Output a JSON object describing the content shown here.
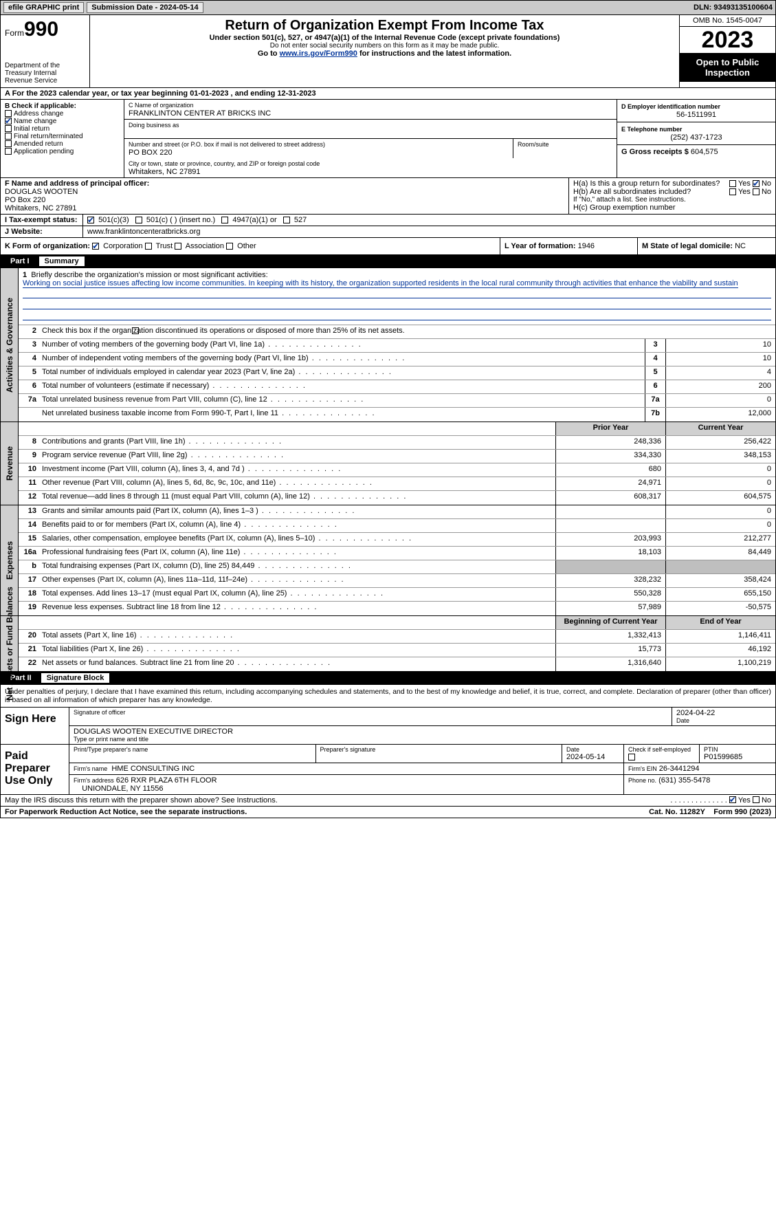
{
  "topbar": {
    "efile_label": "efile GRAPHIC print",
    "submission_label": "Submission Date - 2024-05-14",
    "dln_label": "DLN: 93493135100604"
  },
  "header": {
    "form_word": "Form",
    "form_num": "990",
    "dept": "Department of the Treasury Internal Revenue Service",
    "title": "Return of Organization Exempt From Income Tax",
    "sub1": "Under section 501(c), 527, or 4947(a)(1) of the Internal Revenue Code (except private foundations)",
    "sub2": "Do not enter social security numbers on this form as it may be made public.",
    "sub3_pre": "Go to ",
    "sub3_link": "www.irs.gov/Form990",
    "sub3_post": " for instructions and the latest information.",
    "omb": "OMB No. 1545-0047",
    "year": "2023",
    "open_pub": "Open to Public Inspection"
  },
  "line_a": "A For the 2023 calendar year, or tax year beginning 01-01-2023   , and ending 12-31-2023",
  "box_b": {
    "header": "B Check if applicable:",
    "opts": [
      "Address change",
      "Name change",
      "Initial return",
      "Final return/terminated",
      "Amended return",
      "Application pending"
    ],
    "checked_idx": 1
  },
  "box_c": {
    "name_lbl": "C Name of organization",
    "name_val": "FRANKLINTON CENTER AT BRICKS INC",
    "dba_lbl": "Doing business as",
    "street_lbl": "Number and street (or P.O. box if mail is not delivered to street address)",
    "street_val": "PO BOX 220",
    "room_lbl": "Room/suite",
    "city_lbl": "City or town, state or province, country, and ZIP or foreign postal code",
    "city_val": "Whitakers, NC  27891"
  },
  "box_d": {
    "lbl": "D Employer identification number",
    "val": "56-1511991"
  },
  "box_e": {
    "lbl": "E Telephone number",
    "val": "(252) 437-1723"
  },
  "box_g": {
    "lbl": "G Gross receipts $",
    "val": "604,575"
  },
  "box_f": {
    "lbl": "F Name and address of principal officer:",
    "name": "DOUGLAS WOOTEN",
    "street": "PO Box 220",
    "city": "Whitakers, NC  27891"
  },
  "box_h": {
    "a_lbl": "H(a)  Is this a group return for subordinates?",
    "a_yes": "Yes",
    "a_no": "No",
    "b_lbl": "H(b)  Are all subordinates included?",
    "b_yes": "Yes",
    "b_no": "No",
    "b_note": "If \"No,\" attach a list. See instructions.",
    "c_lbl": "H(c)  Group exemption number"
  },
  "box_i": {
    "lbl": "Tax-exempt status:",
    "opts": [
      "501(c)(3)",
      "501(c) (  ) (insert no.)",
      "4947(a)(1) or",
      "527"
    ]
  },
  "box_j": {
    "lbl": "Website:",
    "val": "www.franklintoncenteratbricks.org"
  },
  "box_k": {
    "lbl": "K Form of organization:",
    "opts": [
      "Corporation",
      "Trust",
      "Association",
      "Other"
    ]
  },
  "box_l": {
    "lbl": "L Year of formation:",
    "val": "1946"
  },
  "box_m": {
    "lbl": "M State of legal domicile:",
    "val": "NC"
  },
  "part1": {
    "num": "Part I",
    "title": "Summary"
  },
  "summary": {
    "line1_lbl": "Briefly describe the organization's mission or most significant activities:",
    "line1_txt": "Working on social justice issues affecting low income communities. In keeping with its history, the organization supported residents in the local rural community through activities that enhance the viability and sustain",
    "line2_lbl": "Check this box         if the organization discontinued its operations or disposed of more than 25% of its net assets.",
    "rows_ag": [
      {
        "n": "3",
        "d": "Number of voting members of the governing body (Part VI, line 1a)",
        "box": "3",
        "v": "10"
      },
      {
        "n": "4",
        "d": "Number of independent voting members of the governing body (Part VI, line 1b)",
        "box": "4",
        "v": "10"
      },
      {
        "n": "5",
        "d": "Total number of individuals employed in calendar year 2023 (Part V, line 2a)",
        "box": "5",
        "v": "4"
      },
      {
        "n": "6",
        "d": "Total number of volunteers (estimate if necessary)",
        "box": "6",
        "v": "200"
      },
      {
        "n": "7a",
        "d": "Total unrelated business revenue from Part VIII, column (C), line 12",
        "box": "7a",
        "v": "0"
      },
      {
        "n": "",
        "d": "Net unrelated business taxable income from Form 990-T, Part I, line 11",
        "box": "7b",
        "v": "12,000"
      }
    ],
    "prior_hdr": "Prior Year",
    "curr_hdr": "Current Year",
    "rows_rev": [
      {
        "n": "8",
        "d": "Contributions and grants (Part VIII, line 1h)",
        "p": "248,336",
        "c": "256,422"
      },
      {
        "n": "9",
        "d": "Program service revenue (Part VIII, line 2g)",
        "p": "334,330",
        "c": "348,153"
      },
      {
        "n": "10",
        "d": "Investment income (Part VIII, column (A), lines 3, 4, and 7d )",
        "p": "680",
        "c": "0"
      },
      {
        "n": "11",
        "d": "Other revenue (Part VIII, column (A), lines 5, 6d, 8c, 9c, 10c, and 11e)",
        "p": "24,971",
        "c": "0"
      },
      {
        "n": "12",
        "d": "Total revenue—add lines 8 through 11 (must equal Part VIII, column (A), line 12)",
        "p": "608,317",
        "c": "604,575"
      }
    ],
    "rows_exp": [
      {
        "n": "13",
        "d": "Grants and similar amounts paid (Part IX, column (A), lines 1–3 )",
        "p": "",
        "c": "0"
      },
      {
        "n": "14",
        "d": "Benefits paid to or for members (Part IX, column (A), line 4)",
        "p": "",
        "c": "0"
      },
      {
        "n": "15",
        "d": "Salaries, other compensation, employee benefits (Part IX, column (A), lines 5–10)",
        "p": "203,993",
        "c": "212,277"
      },
      {
        "n": "16a",
        "d": "Professional fundraising fees (Part IX, column (A), line 11e)",
        "p": "18,103",
        "c": "84,449"
      },
      {
        "n": "b",
        "d": "Total fundraising expenses (Part IX, column (D), line 25) 84,449",
        "p": "SHADE",
        "c": "SHADE"
      },
      {
        "n": "17",
        "d": "Other expenses (Part IX, column (A), lines 11a–11d, 11f–24e)",
        "p": "328,232",
        "c": "358,424"
      },
      {
        "n": "18",
        "d": "Total expenses. Add lines 13–17 (must equal Part IX, column (A), line 25)",
        "p": "550,328",
        "c": "655,150"
      },
      {
        "n": "19",
        "d": "Revenue less expenses. Subtract line 18 from line 12",
        "p": "57,989",
        "c": "-50,575"
      }
    ],
    "boy_hdr": "Beginning of Current Year",
    "eoy_hdr": "End of Year",
    "rows_net": [
      {
        "n": "20",
        "d": "Total assets (Part X, line 16)",
        "p": "1,332,413",
        "c": "1,146,411"
      },
      {
        "n": "21",
        "d": "Total liabilities (Part X, line 26)",
        "p": "15,773",
        "c": "46,192"
      },
      {
        "n": "22",
        "d": "Net assets or fund balances. Subtract line 21 from line 20",
        "p": "1,316,640",
        "c": "1,100,219"
      }
    ]
  },
  "sidelabels": {
    "ag": "Activities & Governance",
    "rev": "Revenue",
    "exp": "Expenses",
    "net": "Net Assets or Fund Balances"
  },
  "part2": {
    "num": "Part II",
    "title": "Signature Block"
  },
  "sig": {
    "decl": "Under penalties of perjury, I declare that I have examined this return, including accompanying schedules and statements, and to the best of my knowledge and belief, it is true, correct, and complete. Declaration of preparer (other than officer) is based on all information of which preparer has any knowledge.",
    "sign_here": "Sign Here",
    "sig_officer_lbl": "Signature of officer",
    "date_val": "2024-04-22",
    "officer_name": "DOUGLAS WOOTEN  EXECUTIVE DIRECTOR",
    "type_lbl": "Type or print name and title",
    "paid": "Paid Preparer Use Only",
    "prep_name_lbl": "Print/Type preparer's name",
    "prep_sig_lbl": "Preparer's signature",
    "prep_date_lbl": "Date",
    "prep_date_val": "2024-05-14",
    "check_self": "Check          if self-employed",
    "ptin_lbl": "PTIN",
    "ptin_val": "P01599685",
    "firm_name_lbl": "Firm's name",
    "firm_name_val": "HME CONSULTING INC",
    "firm_ein_lbl": "Firm's EIN",
    "firm_ein_val": "26-3441294",
    "firm_addr_lbl": "Firm's address",
    "firm_addr_val1": "626 RXR PLAZA 6TH FLOOR",
    "firm_addr_val2": "UNIONDALE, NY  11556",
    "phone_lbl": "Phone no.",
    "phone_val": "(631) 355-5478",
    "discuss": "May the IRS discuss this return with the preparer shown above? See Instructions.",
    "yes": "Yes",
    "no": "No"
  },
  "footer": {
    "pra": "For Paperwork Reduction Act Notice, see the separate instructions.",
    "cat": "Cat. No. 11282Y",
    "form": "Form 990 (2023)"
  },
  "colors": {
    "link": "#003399",
    "shade": "#d0d0d0",
    "darkshade": "#bfbfbf"
  }
}
